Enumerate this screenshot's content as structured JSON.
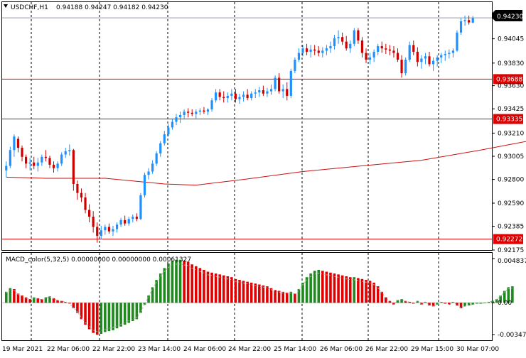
{
  "window": {
    "symbol_label": "USDCHF,H1",
    "ohlc_label": "0.94188 0.94247 0.94182 0.94230",
    "menu_arrow_icon": "triangle-down-icon"
  },
  "price_panel": {
    "current_price_label": "0.94230",
    "price_axis_ticks": [
      "0.94045",
      "0.93830",
      "0.93630",
      "0.93425",
      "0.93210",
      "0.93005",
      "0.92800",
      "0.92590",
      "0.92385",
      "0.92175"
    ],
    "horizontal_lines": [
      {
        "label": "0.93688",
        "value": 0.93688
      },
      {
        "label": "0.93335",
        "value": 0.93335
      },
      {
        "label": "0.92272",
        "value": 0.92272
      }
    ]
  },
  "macd_panel": {
    "indicator_label": "MACD_color(5,32,5) 0.00000000 0.00000000 0.00061327",
    "axis_ticks": [
      "0.0048374",
      "0.00",
      "-0.003478"
    ]
  },
  "time_axis": {
    "ticks": [
      "19 Mar 2021",
      "22 Mar 06:00",
      "22 Mar 22:00",
      "23 Mar 14:00",
      "24 Mar 06:00",
      "24 Mar 22:00",
      "25 Mar 14:00",
      "26 Mar 06:00",
      "26 Mar 22:00",
      "29 Mar 15:00",
      "30 Mar 07:00"
    ]
  },
  "colors": {
    "bull_candle": "#1e90ff",
    "bear_candle": "#cc0000",
    "hline": "#dd0000",
    "moving_average": "#cc1111",
    "macd_up": "#1e8a1e",
    "macd_down": "#e00000",
    "grid": "#000000",
    "axis_label_bg": "#000000",
    "hline_label_bg": "#dd0000"
  },
  "chart_data": [
    {
      "type": "candlestick",
      "symbol": "USDCHF",
      "timeframe": "H1",
      "ylim": [
        0.92175,
        0.9425
      ],
      "candles": [
        [
          0.9288,
          0.9296,
          0.9282,
          0.9292
        ],
        [
          0.9292,
          0.9309,
          0.929,
          0.9306
        ],
        [
          0.9306,
          0.932,
          0.93,
          0.9318
        ],
        [
          0.9316,
          0.9318,
          0.9304,
          0.9308
        ],
        [
          0.9308,
          0.931,
          0.9296,
          0.93
        ],
        [
          0.93,
          0.9302,
          0.929,
          0.9294
        ],
        [
          0.9294,
          0.9299,
          0.9288,
          0.9295
        ],
        [
          0.9295,
          0.93,
          0.9289,
          0.9292
        ],
        [
          0.9292,
          0.9299,
          0.9287,
          0.9295
        ],
        [
          0.9295,
          0.9302,
          0.9292,
          0.93
        ],
        [
          0.93,
          0.9306,
          0.9296,
          0.9299
        ],
        [
          0.9299,
          0.9301,
          0.929,
          0.9293
        ],
        [
          0.9293,
          0.9296,
          0.9286,
          0.929
        ],
        [
          0.929,
          0.9296,
          0.9287,
          0.9294
        ],
        [
          0.9294,
          0.9304,
          0.9292,
          0.9302
        ],
        [
          0.9302,
          0.9308,
          0.9299,
          0.9305
        ],
        [
          0.9305,
          0.9311,
          0.9301,
          0.9306
        ],
        [
          0.9306,
          0.9307,
          0.927,
          0.9276
        ],
        [
          0.9276,
          0.9279,
          0.9262,
          0.9268
        ],
        [
          0.9268,
          0.9272,
          0.926,
          0.9264
        ],
        [
          0.9264,
          0.9268,
          0.925,
          0.9253
        ],
        [
          0.9253,
          0.9258,
          0.9242,
          0.9247
        ],
        [
          0.9247,
          0.9252,
          0.9233,
          0.9238
        ],
        [
          0.9238,
          0.9242,
          0.9224,
          0.923
        ],
        [
          0.923,
          0.9239,
          0.9227,
          0.9235
        ],
        [
          0.9235,
          0.924,
          0.9231,
          0.9238
        ],
        [
          0.9238,
          0.9241,
          0.9232,
          0.9234
        ],
        [
          0.9234,
          0.9239,
          0.923,
          0.9236
        ],
        [
          0.9236,
          0.9242,
          0.9233,
          0.924
        ],
        [
          0.924,
          0.9246,
          0.9238,
          0.9244
        ],
        [
          0.9244,
          0.9248,
          0.9239,
          0.9241
        ],
        [
          0.9241,
          0.9247,
          0.9239,
          0.9245
        ],
        [
          0.9245,
          0.9249,
          0.9242,
          0.9247
        ],
        [
          0.9247,
          0.925,
          0.9243,
          0.9245
        ],
        [
          0.9245,
          0.9268,
          0.9244,
          0.9266
        ],
        [
          0.9266,
          0.9286,
          0.9264,
          0.9284
        ],
        [
          0.9284,
          0.929,
          0.928,
          0.9287
        ],
        [
          0.9287,
          0.9297,
          0.9285,
          0.9294
        ],
        [
          0.9294,
          0.9305,
          0.9292,
          0.9303
        ],
        [
          0.9303,
          0.9314,
          0.93,
          0.9312
        ],
        [
          0.9312,
          0.9323,
          0.931,
          0.932
        ],
        [
          0.932,
          0.9329,
          0.9318,
          0.9326
        ],
        [
          0.9326,
          0.9334,
          0.9324,
          0.9331
        ],
        [
          0.9331,
          0.9338,
          0.9328,
          0.9335
        ],
        [
          0.9335,
          0.934,
          0.933,
          0.9337
        ],
        [
          0.9337,
          0.9342,
          0.9333,
          0.934
        ],
        [
          0.934,
          0.9343,
          0.9335,
          0.9339
        ],
        [
          0.9339,
          0.9342,
          0.9336,
          0.9338
        ],
        [
          0.9338,
          0.9342,
          0.9334,
          0.934
        ],
        [
          0.934,
          0.9343,
          0.9337,
          0.9341
        ],
        [
          0.9341,
          0.9344,
          0.9338,
          0.934
        ],
        [
          0.934,
          0.9343,
          0.9337,
          0.9342
        ],
        [
          0.9342,
          0.9352,
          0.934,
          0.935
        ],
        [
          0.935,
          0.936,
          0.9348,
          0.9357
        ],
        [
          0.9357,
          0.936,
          0.935,
          0.9353
        ],
        [
          0.9353,
          0.9358,
          0.9348,
          0.9352
        ],
        [
          0.9352,
          0.9357,
          0.9348,
          0.9354
        ],
        [
          0.9354,
          0.936,
          0.935,
          0.9356
        ],
        [
          0.9356,
          0.936,
          0.9348,
          0.9351
        ],
        [
          0.9351,
          0.9356,
          0.9347,
          0.9353
        ],
        [
          0.9353,
          0.9358,
          0.9349,
          0.9355
        ],
        [
          0.9355,
          0.936,
          0.935,
          0.9352
        ],
        [
          0.9352,
          0.9358,
          0.935,
          0.9356
        ],
        [
          0.9356,
          0.936,
          0.9352,
          0.9357
        ],
        [
          0.9357,
          0.9362,
          0.9353,
          0.9359
        ],
        [
          0.9359,
          0.9363,
          0.9354,
          0.9356
        ],
        [
          0.9356,
          0.9361,
          0.9353,
          0.9358
        ],
        [
          0.9358,
          0.9364,
          0.9355,
          0.936
        ],
        [
          0.936,
          0.9372,
          0.9358,
          0.937
        ],
        [
          0.937,
          0.9374,
          0.9356,
          0.9358
        ],
        [
          0.9358,
          0.9364,
          0.9352,
          0.936
        ],
        [
          0.936,
          0.9366,
          0.935,
          0.9354
        ],
        [
          0.9354,
          0.9378,
          0.9352,
          0.9376
        ],
        [
          0.9376,
          0.9388,
          0.9374,
          0.9386
        ],
        [
          0.9386,
          0.9396,
          0.9384,
          0.9392
        ],
        [
          0.9392,
          0.9399,
          0.9389,
          0.9396
        ],
        [
          0.9396,
          0.94,
          0.939,
          0.9393
        ],
        [
          0.9393,
          0.9399,
          0.9388,
          0.9395
        ],
        [
          0.9395,
          0.9399,
          0.939,
          0.9394
        ],
        [
          0.9394,
          0.9398,
          0.9389,
          0.9392
        ],
        [
          0.9392,
          0.9397,
          0.9388,
          0.9394
        ],
        [
          0.9394,
          0.9399,
          0.939,
          0.9396
        ],
        [
          0.9396,
          0.9402,
          0.9392,
          0.9398
        ],
        [
          0.9398,
          0.9408,
          0.9395,
          0.9405
        ],
        [
          0.9405,
          0.9412,
          0.94,
          0.9406
        ],
        [
          0.9406,
          0.941,
          0.9399,
          0.9402
        ],
        [
          0.9402,
          0.9407,
          0.9394,
          0.9396
        ],
        [
          0.9396,
          0.9403,
          0.9392,
          0.94
        ],
        [
          0.94,
          0.9414,
          0.9398,
          0.9412
        ],
        [
          0.9412,
          0.9414,
          0.94,
          0.9403
        ],
        [
          0.9403,
          0.9406,
          0.9388,
          0.9392
        ],
        [
          0.9392,
          0.9396,
          0.9383,
          0.9386
        ],
        [
          0.9386,
          0.9392,
          0.9382,
          0.9388
        ],
        [
          0.9388,
          0.9395,
          0.9384,
          0.9393
        ],
        [
          0.9393,
          0.94,
          0.939,
          0.9398
        ],
        [
          0.9398,
          0.9402,
          0.9392,
          0.9396
        ],
        [
          0.9396,
          0.94,
          0.9391,
          0.9395
        ],
        [
          0.9395,
          0.9399,
          0.939,
          0.9394
        ],
        [
          0.9394,
          0.9398,
          0.9388,
          0.9392
        ],
        [
          0.9392,
          0.9396,
          0.9384,
          0.9386
        ],
        [
          0.9386,
          0.939,
          0.937,
          0.9374
        ],
        [
          0.9374,
          0.9388,
          0.9372,
          0.9386
        ],
        [
          0.9386,
          0.9402,
          0.9384,
          0.9399
        ],
        [
          0.9399,
          0.9403,
          0.939,
          0.9393
        ],
        [
          0.9393,
          0.9397,
          0.938,
          0.9384
        ],
        [
          0.9384,
          0.939,
          0.9378,
          0.9387
        ],
        [
          0.9387,
          0.9392,
          0.9382,
          0.9389
        ],
        [
          0.9389,
          0.9393,
          0.938,
          0.9382
        ],
        [
          0.9382,
          0.9388,
          0.9376,
          0.9385
        ],
        [
          0.9385,
          0.939,
          0.938,
          0.9388
        ],
        [
          0.9388,
          0.9392,
          0.9383,
          0.939
        ],
        [
          0.939,
          0.9394,
          0.9385,
          0.9391
        ],
        [
          0.9391,
          0.9395,
          0.9387,
          0.9392
        ],
        [
          0.9392,
          0.9396,
          0.9388,
          0.9394
        ],
        [
          0.9394,
          0.9412,
          0.9393,
          0.941
        ],
        [
          0.941,
          0.9423,
          0.9408,
          0.942
        ],
        [
          0.942,
          0.9425,
          0.9416,
          0.9421
        ],
        [
          0.9421,
          0.9425,
          0.9417,
          0.9419
        ],
        [
          0.94188,
          0.94247,
          0.94182,
          0.9423
        ]
      ],
      "moving_average": [
        [
          0,
          0.9282
        ],
        [
          10,
          0.9281
        ],
        [
          25,
          0.9281
        ],
        [
          40,
          0.9276
        ],
        [
          48,
          0.9275
        ],
        [
          60,
          0.928
        ],
        [
          75,
          0.9287
        ],
        [
          90,
          0.9292
        ],
        [
          105,
          0.9297
        ],
        [
          120,
          0.9306
        ],
        [
          135,
          0.9316
        ],
        [
          150,
          0.9325
        ],
        [
          160,
          0.9332
        ],
        [
          163,
          0.9334
        ]
      ]
    },
    {
      "type": "bar",
      "name": "MACD_color(5,32,5)",
      "ylim": [
        -0.003478,
        0.0048374
      ],
      "values": [
        0.0012,
        0.0016,
        0.0015,
        0.001,
        0.0008,
        0.0006,
        0.0004,
        0.0006,
        0.0005,
        0.0004,
        0.0006,
        0.0007,
        0.0005,
        0.0003,
        0.0002,
        0.0001,
        -0.0001,
        -0.0006,
        -0.0011,
        -0.0018,
        -0.0024,
        -0.0029,
        -0.0033,
        -0.0035,
        -0.0034,
        -0.0032,
        -0.0031,
        -0.003,
        -0.0028,
        -0.0026,
        -0.0024,
        -0.0022,
        -0.002,
        -0.0018,
        -0.0011,
        -0.0002,
        0.0008,
        0.0017,
        0.0025,
        0.0032,
        0.0038,
        0.0043,
        0.0046,
        0.0047,
        0.0047,
        0.0046,
        0.0045,
        0.0042,
        0.004,
        0.0038,
        0.0036,
        0.0034,
        0.0033,
        0.0032,
        0.0031,
        0.003,
        0.0029,
        0.0028,
        0.0026,
        0.0025,
        0.0024,
        0.0023,
        0.0022,
        0.0021,
        0.002,
        0.0019,
        0.0018,
        0.0016,
        0.0014,
        0.0013,
        0.0012,
        0.0011,
        0.0012,
        0.001,
        0.0015,
        0.0022,
        0.0028,
        0.0032,
        0.0035,
        0.0036,
        0.0035,
        0.0034,
        0.0033,
        0.0032,
        0.0031,
        0.003,
        0.0029,
        0.0028,
        0.0028,
        0.0027,
        0.0026,
        0.0025,
        0.0024,
        0.0022,
        0.0018,
        0.0012,
        0.0006,
        0.0002,
        -0.0002,
        0.0003,
        0.0004,
        0.0002,
        0.0001,
        -0.0001,
        0.0002,
        -0.0002,
        0.0001,
        -0.0003,
        -0.0004,
        -0.0002,
        0.0001,
        -0.0001,
        -0.0002,
        0.0001,
        -0.0003,
        -0.0006,
        -0.0004,
        -0.0003,
        -0.0002,
        -0.0001,
        -0.0001,
        0.0,
        0.0001,
        0.0002,
        0.0004,
        0.0008,
        0.0013,
        0.0017,
        0.0018
      ]
    }
  ]
}
